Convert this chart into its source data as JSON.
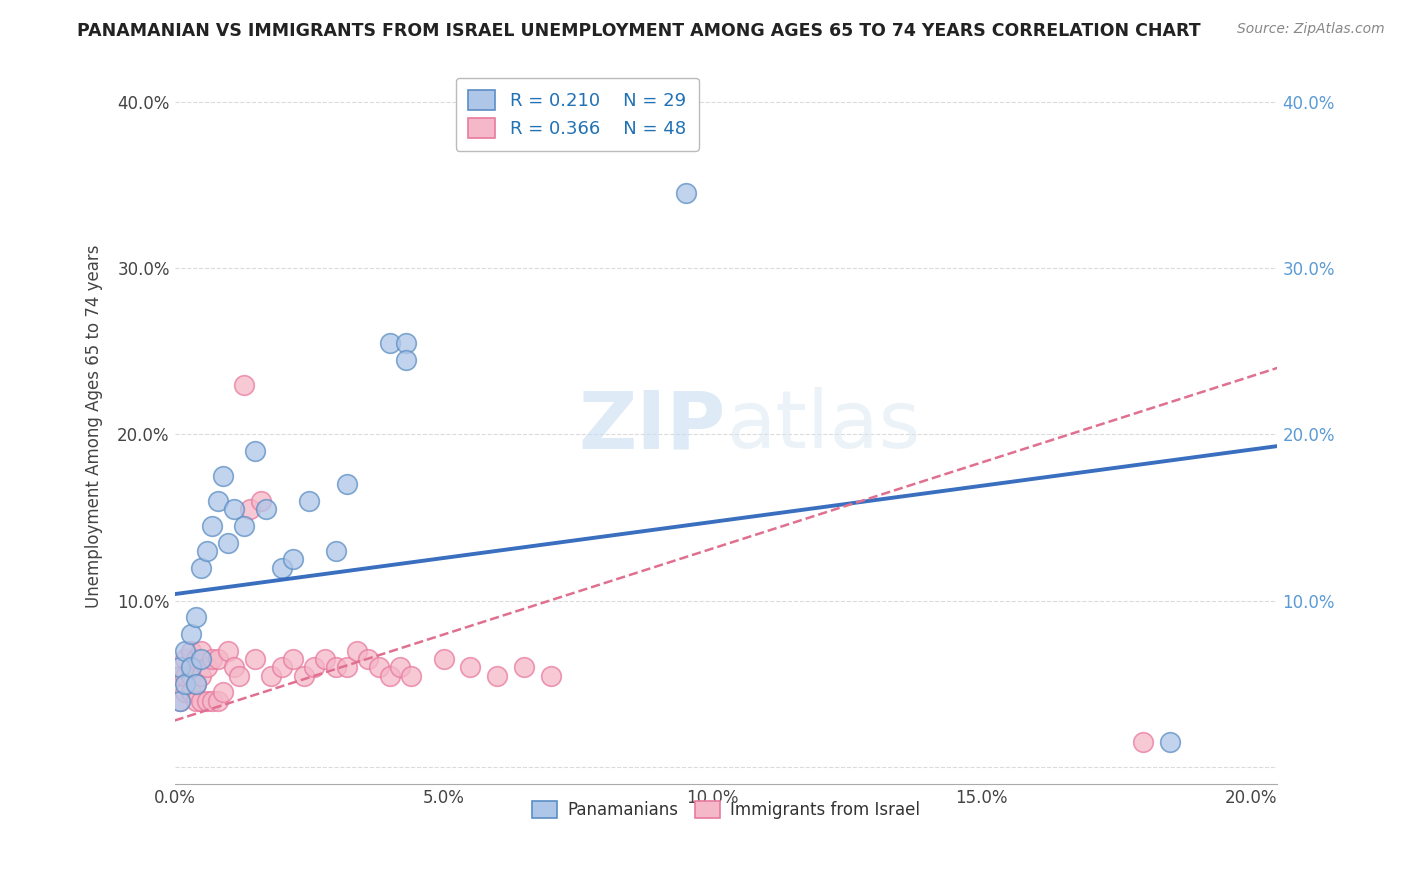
{
  "title": "PANAMANIAN VS IMMIGRANTS FROM ISRAEL UNEMPLOYMENT AMONG AGES 65 TO 74 YEARS CORRELATION CHART",
  "source": "Source: ZipAtlas.com",
  "ylabel": "Unemployment Among Ages 65 to 74 years",
  "xlim": [
    0.0,
    0.205
  ],
  "ylim": [
    -0.01,
    0.42
  ],
  "xticks": [
    0.0,
    0.05,
    0.1,
    0.15,
    0.2
  ],
  "yticks": [
    0.0,
    0.1,
    0.2,
    0.3,
    0.4
  ],
  "xticklabels": [
    "0.0%",
    "5.0%",
    "10.0%",
    "15.0%",
    "20.0%"
  ],
  "yticklabels_left": [
    "",
    "10.0%",
    "20.0%",
    "30.0%",
    "40.0%"
  ],
  "yticklabels_right": [
    "",
    "10.0%",
    "20.0%",
    "30.0%",
    "40.0%"
  ],
  "legend_r1": "R = 0.210",
  "legend_n1": "N = 29",
  "legend_r2": "R = 0.366",
  "legend_n2": "N = 48",
  "color_blue": "#aec6e8",
  "color_pink": "#f4b8c8",
  "edge_blue": "#5b8ec4",
  "edge_pink": "#e87a9f",
  "line_blue": "#3a6fbf",
  "line_pink": "#e07090",
  "watermark_color": "#d5e8f5",
  "background_color": "#ffffff",
  "grid_color": "#cccccc",
  "blue_trend_x": [
    0.0,
    0.205
  ],
  "blue_trend_y": [
    0.104,
    0.193
  ],
  "pink_trend_x": [
    0.0,
    0.205
  ],
  "pink_trend_y": [
    0.028,
    0.24
  ],
  "blue_x": [
    0.001,
    0.001,
    0.002,
    0.002,
    0.003,
    0.003,
    0.004,
    0.004,
    0.005,
    0.005,
    0.006,
    0.007,
    0.008,
    0.009,
    0.01,
    0.011,
    0.013,
    0.015,
    0.017,
    0.02,
    0.022,
    0.025,
    0.03,
    0.032,
    0.04,
    0.043,
    0.043,
    0.095,
    0.185
  ],
  "blue_y": [
    0.04,
    0.06,
    0.05,
    0.07,
    0.06,
    0.08,
    0.05,
    0.09,
    0.065,
    0.12,
    0.13,
    0.145,
    0.16,
    0.175,
    0.135,
    0.155,
    0.145,
    0.19,
    0.155,
    0.12,
    0.125,
    0.16,
    0.13,
    0.17,
    0.255,
    0.255,
    0.245,
    0.345,
    0.015
  ],
  "pink_x": [
    0.001,
    0.001,
    0.002,
    0.002,
    0.002,
    0.003,
    0.003,
    0.003,
    0.004,
    0.004,
    0.004,
    0.005,
    0.005,
    0.005,
    0.006,
    0.006,
    0.007,
    0.007,
    0.008,
    0.008,
    0.009,
    0.01,
    0.011,
    0.012,
    0.013,
    0.014,
    0.015,
    0.016,
    0.018,
    0.02,
    0.022,
    0.024,
    0.026,
    0.028,
    0.03,
    0.032,
    0.034,
    0.036,
    0.038,
    0.04,
    0.042,
    0.044,
    0.05,
    0.055,
    0.06,
    0.065,
    0.07,
    0.18
  ],
  "pink_y": [
    0.04,
    0.055,
    0.045,
    0.055,
    0.065,
    0.045,
    0.055,
    0.07,
    0.04,
    0.05,
    0.065,
    0.04,
    0.055,
    0.07,
    0.04,
    0.06,
    0.04,
    0.065,
    0.04,
    0.065,
    0.045,
    0.07,
    0.06,
    0.055,
    0.23,
    0.155,
    0.065,
    0.16,
    0.055,
    0.06,
    0.065,
    0.055,
    0.06,
    0.065,
    0.06,
    0.06,
    0.07,
    0.065,
    0.06,
    0.055,
    0.06,
    0.055,
    0.065,
    0.06,
    0.055,
    0.06,
    0.055,
    0.015
  ]
}
